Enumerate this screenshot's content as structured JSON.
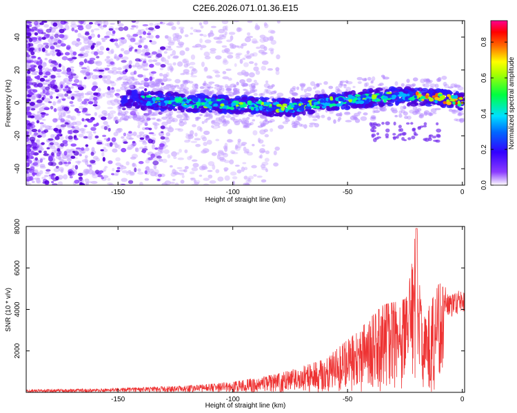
{
  "title": "C2E6.2026.071.01.36.E15",
  "chart_data": [
    {
      "type": "heatmap",
      "xlabel": "Height of straight line (km)",
      "ylabel": "Frequency (Hz)",
      "xlim": [
        -190,
        1
      ],
      "ylim": [
        -50,
        50
      ],
      "xticks": [
        -150,
        -100,
        -50,
        0
      ],
      "yticks": [
        -40,
        -20,
        0,
        20,
        40
      ],
      "colorbar": {
        "label": "Normalized spectral amplitude",
        "range": [
          0,
          0.92
        ],
        "ticks": [
          0.0,
          0.2,
          0.4,
          0.6,
          0.8
        ],
        "colors": [
          "#ffffff",
          "#5a00cc",
          "#1a1aff",
          "#00c8ff",
          "#00ff66",
          "#ffff00",
          "#ff8800",
          "#ff0000",
          "#ff0080"
        ]
      },
      "grid": false,
      "band": {
        "description_points": [
          {
            "x": -145,
            "freq_center": 2,
            "width": 6
          },
          {
            "x": -100,
            "freq_center": -1,
            "width": 6
          },
          {
            "x": -75,
            "freq_center": -3,
            "width": 6
          },
          {
            "x": -55,
            "freq_center": 1,
            "width": 6
          },
          {
            "x": -30,
            "freq_center": 4,
            "width": 6
          },
          {
            "x": -10,
            "freq_center": 3,
            "width": 5
          },
          {
            "x": 0,
            "freq_center": 1,
            "width": 4
          }
        ]
      }
    },
    {
      "type": "line",
      "xlabel": "Height of straight line (km)",
      "ylabel": "SNR (10 * v/v)",
      "xlim": [
        -190,
        1
      ],
      "ylim": [
        0,
        8000
      ],
      "xticks": [
        -150,
        -100,
        -50,
        0
      ],
      "yticks": [
        2000,
        4000,
        6000,
        8000
      ],
      "grid": false,
      "series": [
        {
          "color": "#ee3333",
          "envelope": [
            {
              "x": -190,
              "y": 120
            },
            {
              "x": -150,
              "y": 200
            },
            {
              "x": -120,
              "y": 320
            },
            {
              "x": -100,
              "y": 500
            },
            {
              "x": -80,
              "y": 900
            },
            {
              "x": -60,
              "y": 1600
            },
            {
              "x": -45,
              "y": 3000
            },
            {
              "x": -35,
              "y": 4200
            },
            {
              "x": -25,
              "y": 4500
            },
            {
              "x": -20,
              "y": 7900
            },
            {
              "x": -17,
              "y": 3500
            },
            {
              "x": -10,
              "y": 5300
            },
            {
              "x": -5,
              "y": 4600
            },
            {
              "x": 0,
              "y": 4900
            }
          ]
        }
      ]
    }
  ]
}
